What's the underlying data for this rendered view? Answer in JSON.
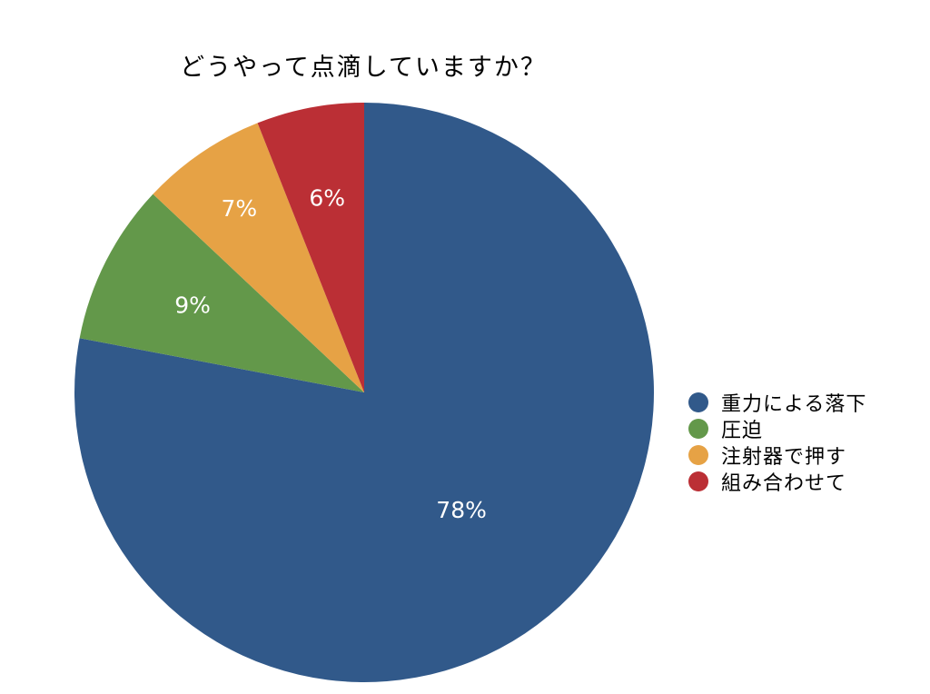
{
  "chart_data": {
    "type": "pie",
    "title": "どうやって点滴していますか？",
    "slices": [
      {
        "label": "重力による落下",
        "value": 78,
        "display": "78%",
        "color": "#31598A"
      },
      {
        "label": "圧迫",
        "value": 9,
        "display": "9%",
        "color": "#63984A"
      },
      {
        "label": "注射器で押す",
        "value": 7,
        "display": "7%",
        "color": "#E6A245"
      },
      {
        "label": "組み合わせて",
        "value": 6,
        "display": "6%",
        "color": "#BB2F35"
      }
    ],
    "start": "12 o'clock",
    "direction": "clockwise",
    "legend_position": "right"
  }
}
